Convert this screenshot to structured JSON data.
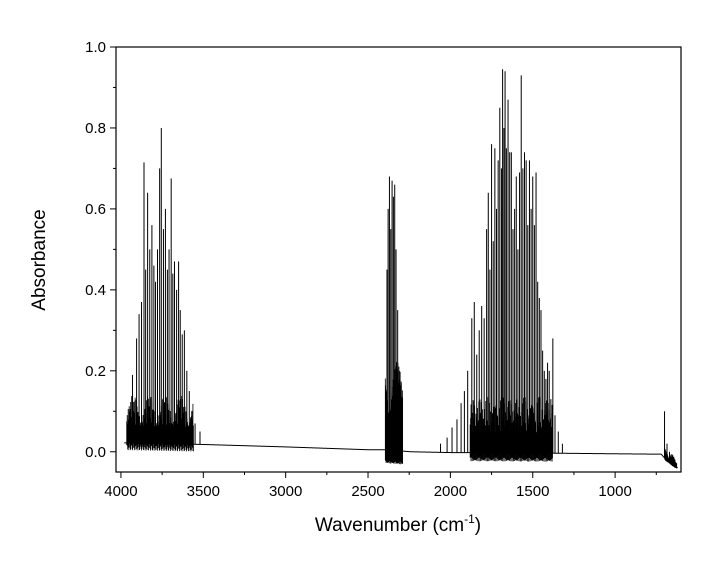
{
  "chart_data": {
    "type": "line",
    "title": "",
    "xlabel": "Wavenumber (cm",
    "xlabel_superscript": "-1",
    "xlabel_suffix": ")",
    "ylabel": "Absorbance",
    "xlim": [
      4030,
      600
    ],
    "ylim": [
      -0.05,
      1.0
    ],
    "x_reversed": true,
    "grid": false,
    "legend": "none",
    "line_color": "#000000",
    "x_ticks": [
      4000,
      3500,
      3000,
      2500,
      2000,
      1500,
      1000
    ],
    "x_tick_labels": [
      "4000",
      "3500",
      "3000",
      "2500",
      "2000",
      "1500",
      "1000"
    ],
    "y_ticks": [
      0.0,
      0.2,
      0.4,
      0.6,
      0.8,
      1.0
    ],
    "y_tick_labels": [
      "0.0",
      "0.2",
      "0.4",
      "0.6",
      "0.8",
      "1.0"
    ],
    "baseline": [
      [
        3980,
        0.022
      ],
      [
        3500,
        0.018
      ],
      [
        3000,
        0.012
      ],
      [
        2500,
        0.005
      ],
      [
        2390,
        0.005
      ],
      [
        2240,
        0.0
      ],
      [
        2000,
        -0.002
      ],
      [
        1500,
        -0.003
      ],
      [
        1000,
        -0.005
      ],
      [
        720,
        -0.006
      ],
      [
        690,
        -0.02
      ],
      [
        640,
        -0.035
      ],
      [
        620,
        -0.04
      ]
    ],
    "peaks": [
      [
        3955,
        0.08
      ],
      [
        3930,
        0.19
      ],
      [
        3905,
        0.28
      ],
      [
        3890,
        0.34
      ],
      [
        3875,
        0.37
      ],
      [
        3860,
        0.715
      ],
      [
        3850,
        0.45
      ],
      [
        3838,
        0.64
      ],
      [
        3825,
        0.5
      ],
      [
        3812,
        0.56
      ],
      [
        3800,
        0.46
      ],
      [
        3790,
        0.42
      ],
      [
        3778,
        0.5
      ],
      [
        3765,
        0.7
      ],
      [
        3755,
        0.8
      ],
      [
        3742,
        0.55
      ],
      [
        3730,
        0.6
      ],
      [
        3718,
        0.45
      ],
      [
        3708,
        0.5
      ],
      [
        3695,
        0.675
      ],
      [
        3685,
        0.44
      ],
      [
        3675,
        0.47
      ],
      [
        3662,
        0.4
      ],
      [
        3650,
        0.47
      ],
      [
        3640,
        0.35
      ],
      [
        3628,
        0.29
      ],
      [
        3615,
        0.3
      ],
      [
        3600,
        0.2
      ],
      [
        3585,
        0.15
      ],
      [
        3570,
        0.1
      ],
      [
        3550,
        0.07
      ],
      [
        3520,
        0.05
      ],
      [
        2385,
        0.45
      ],
      [
        2378,
        0.6
      ],
      [
        2370,
        0.68
      ],
      [
        2362,
        0.55
      ],
      [
        2354,
        0.67
      ],
      [
        2346,
        0.63
      ],
      [
        2338,
        0.66
      ],
      [
        2330,
        0.5
      ],
      [
        2320,
        0.35
      ],
      [
        2310,
        0.2
      ],
      [
        2298,
        0.08
      ],
      [
        2060,
        0.02
      ],
      [
        2020,
        0.035
      ],
      [
        1990,
        0.06
      ],
      [
        1960,
        0.08
      ],
      [
        1935,
        0.12
      ],
      [
        1915,
        0.15
      ],
      [
        1895,
        0.2
      ],
      [
        1870,
        0.33
      ],
      [
        1855,
        0.37
      ],
      [
        1840,
        0.24
      ],
      [
        1825,
        0.3
      ],
      [
        1810,
        0.36
      ],
      [
        1795,
        0.33
      ],
      [
        1780,
        0.55
      ],
      [
        1770,
        0.64
      ],
      [
        1760,
        0.45
      ],
      [
        1750,
        0.76
      ],
      [
        1740,
        0.52
      ],
      [
        1730,
        0.75
      ],
      [
        1720,
        0.6
      ],
      [
        1710,
        0.72
      ],
      [
        1700,
        0.85
      ],
      [
        1690,
        0.7
      ],
      [
        1683,
        0.945
      ],
      [
        1675,
        0.8
      ],
      [
        1668,
        0.94
      ],
      [
        1660,
        0.75
      ],
      [
        1650,
        0.87
      ],
      [
        1640,
        0.74
      ],
      [
        1630,
        0.74
      ],
      [
        1620,
        0.55
      ],
      [
        1610,
        0.6
      ],
      [
        1600,
        0.68
      ],
      [
        1590,
        0.5
      ],
      [
        1580,
        0.69
      ],
      [
        1570,
        0.93
      ],
      [
        1560,
        0.7
      ],
      [
        1550,
        0.74
      ],
      [
        1540,
        0.72
      ],
      [
        1530,
        0.56
      ],
      [
        1520,
        0.72
      ],
      [
        1510,
        0.6
      ],
      [
        1500,
        0.68
      ],
      [
        1490,
        0.56
      ],
      [
        1480,
        0.69
      ],
      [
        1470,
        0.42
      ],
      [
        1460,
        0.38
      ],
      [
        1450,
        0.35
      ],
      [
        1440,
        0.25
      ],
      [
        1430,
        0.2
      ],
      [
        1420,
        0.18
      ],
      [
        1410,
        0.22
      ],
      [
        1400,
        0.2
      ],
      [
        1390,
        0.13
      ],
      [
        1378,
        0.28
      ],
      [
        1365,
        0.09
      ],
      [
        1345,
        0.05
      ],
      [
        1320,
        0.02
      ],
      [
        700,
        0.1
      ],
      [
        685,
        0.02
      ],
      [
        670,
        0.0
      ],
      [
        655,
        -0.01
      ]
    ]
  }
}
